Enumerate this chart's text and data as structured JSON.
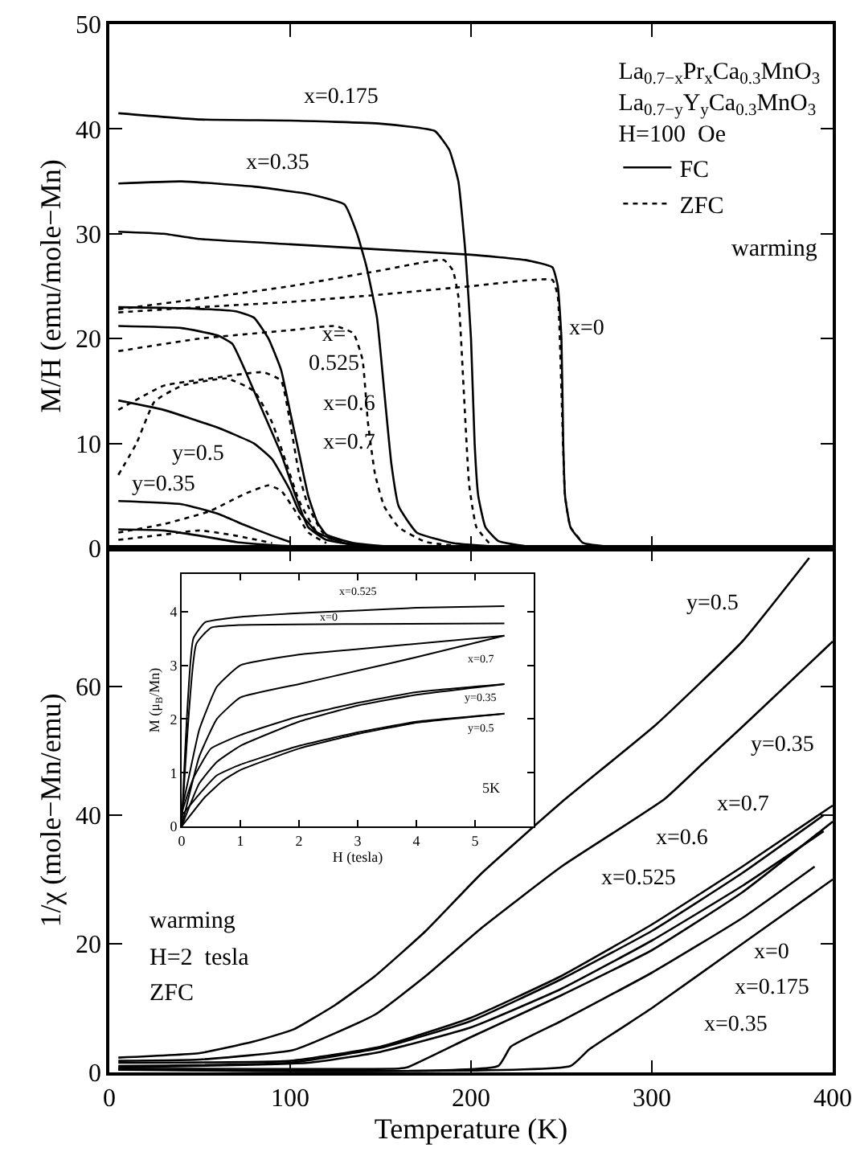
{
  "chart_data": [
    {
      "type": "line",
      "ylabel": "M/H (emu/mole−Mn)",
      "xlim": [
        0,
        400
      ],
      "ylim": [
        0,
        50
      ],
      "xticks": [
        0,
        100,
        200,
        300,
        400
      ],
      "yticks": [
        0,
        10,
        20,
        30,
        40,
        50
      ],
      "tick_labels": "y",
      "legend": "top right",
      "legend_title": "La$_{0.7−x}$Pr$_{x}$Ca$_{0.3}$MnO$_{3}$\nLa$_{0.7−y}$Y$_{y}$Ca$_{0.3}$MnO$_{3}$\nH=100  Oe",
      "marker": "none",
      "annotations": [
        "warming",
        "x=0.175",
        "x=0.35",
        "x=0",
        "x=\n0.525",
        "x=0.6",
        "x=0.7",
        "y=0.5",
        "y=0.35"
      ],
      "series": [
        {
          "name": "FC",
          "color": "#000000",
          "line_style": "solid",
          "x": [
            5,
            50,
            100,
            150,
            180,
            188,
            193,
            197,
            200,
            202,
            204,
            208,
            215,
            230,
            260
          ],
          "values": [
            41.5,
            40.9,
            40.8,
            40.5,
            39.8,
            38,
            35,
            28,
            20,
            10,
            5,
            2,
            0.7,
            0.2,
            0.1
          ]
        },
        {
          "color": "#000000",
          "line_style": "solid",
          "x": [
            5,
            40,
            80,
            110,
            130,
            137,
            142,
            148,
            152,
            156,
            160,
            170,
            190,
            220
          ],
          "values": [
            34.8,
            35,
            34.5,
            33.8,
            32.8,
            30,
            27,
            22,
            15,
            8,
            4,
            1.5,
            0.5,
            0.1
          ]
        },
        {
          "color": "#000000",
          "line_style": "solid",
          "x": [
            5,
            30,
            50,
            100,
            150,
            200,
            230,
            245,
            248,
            250,
            251,
            252,
            255,
            262,
            280
          ],
          "values": [
            30.2,
            30,
            29.5,
            29,
            28.5,
            28,
            27.5,
            26.8,
            25,
            20,
            10,
            5,
            2,
            0.5,
            0.1
          ]
        },
        {
          "color": "#000000",
          "line_style": "solid",
          "x": [
            5,
            40,
            70,
            80,
            88,
            95,
            100,
            105,
            110,
            115,
            120,
            135,
            160
          ],
          "values": [
            23,
            22.9,
            22.6,
            22,
            20,
            17,
            13,
            9,
            5,
            2.5,
            1.3,
            0.5,
            0.1
          ]
        },
        {
          "color": "#000000",
          "line_style": "solid",
          "x": [
            5,
            40,
            60,
            68,
            75,
            85,
            95,
            103,
            110,
            120,
            140
          ],
          "values": [
            21.2,
            21,
            20.3,
            19.5,
            17,
            13,
            9,
            5,
            2,
            0.8,
            0.2
          ]
        },
        {
          "color": "#000000",
          "line_style": "solid",
          "x": [
            5,
            30,
            60,
            80,
            90,
            100,
            105,
            115,
            130,
            150
          ],
          "values": [
            14.1,
            13.2,
            11.5,
            10,
            8.5,
            5.5,
            3.5,
            1.5,
            0.5,
            0.1
          ]
        },
        {
          "color": "#000000",
          "line_style": "solid",
          "x": [
            5,
            40,
            60,
            75,
            90,
            100
          ],
          "values": [
            4.5,
            4.2,
            3.3,
            2.2,
            1.2,
            0.6
          ]
        },
        {
          "color": "#000000",
          "line_style": "solid",
          "x": [
            5,
            30,
            50,
            70,
            90,
            100
          ],
          "values": [
            1.8,
            1.7,
            1.2,
            0.6,
            0.3,
            0.2
          ]
        },
        {
          "name": "ZFC",
          "color": "#000000",
          "line_style": "dotted",
          "x": [
            5,
            50,
            100,
            150,
            185,
            190,
            193,
            196,
            199,
            203,
            210
          ],
          "values": [
            22.8,
            23.8,
            25,
            26.5,
            27.5,
            26.5,
            24,
            15,
            6,
            2,
            0.5
          ]
        },
        {
          "color": "#000000",
          "line_style": "dotted",
          "x": [
            5,
            50,
            100,
            150,
            200,
            245,
            248,
            250,
            252,
            255,
            262
          ],
          "values": [
            22.5,
            23,
            23.5,
            24.2,
            25,
            25.6,
            24,
            15,
            5,
            2,
            0.5
          ]
        },
        {
          "color": "#000000",
          "line_style": "dotted",
          "x": [
            5,
            50,
            100,
            125,
            135,
            140,
            143,
            147,
            152,
            160,
            175,
            200
          ],
          "values": [
            18.8,
            20,
            20.8,
            21.2,
            20.5,
            18,
            12,
            7,
            4,
            2,
            0.6,
            0.1
          ]
        },
        {
          "color": "#000000",
          "line_style": "dotted",
          "x": [
            5,
            30,
            60,
            85,
            95,
            100,
            105,
            110,
            118,
            130
          ],
          "values": [
            13.2,
            15.5,
            16.3,
            16.8,
            16,
            12,
            7,
            4,
            1.5,
            0.5
          ]
        },
        {
          "color": "#000000",
          "line_style": "dotted",
          "x": [
            5,
            15,
            25,
            40,
            65,
            80,
            90,
            100,
            105,
            115,
            130
          ],
          "values": [
            7,
            10,
            14,
            15.5,
            16.2,
            15,
            12,
            7,
            4.5,
            1.5,
            0.4
          ]
        },
        {
          "color": "#000000",
          "line_style": "dotted",
          "x": [
            5,
            30,
            55,
            75,
            88,
            95,
            103,
            110,
            120
          ],
          "values": [
            1.5,
            2.3,
            3.5,
            5.2,
            6,
            5.5,
            3.5,
            1.5,
            0.5
          ]
        },
        {
          "color": "#000000",
          "line_style": "dotted",
          "x": [
            5,
            30,
            50,
            70,
            90
          ],
          "values": [
            0.8,
            1.3,
            1.7,
            1.2,
            0.5
          ]
        }
      ]
    },
    {
      "type": "line",
      "xlabel": "Temperature (K)",
      "ylabel": "1/χ (mole−Mn/emu)",
      "xlim": [
        0,
        400
      ],
      "ylim": [
        0,
        81.5
      ],
      "xticks": [
        0,
        100,
        200,
        300,
        400
      ],
      "yticks": [
        0,
        20,
        40,
        60
      ],
      "marker": "none",
      "annotations": [
        "warming",
        "H=2  tesla",
        "ZFC",
        "y=0.5",
        "y=0.35",
        "x=0.7",
        "x=0.6",
        "x=0.525",
        "x=0",
        "x=0.175",
        "x=0.35"
      ],
      "series": [
        {
          "color": "#000000",
          "line_style": "solid",
          "x": [
            5,
            50,
            80,
            102,
            125,
            147,
            175,
            206,
            250,
            302,
            350,
            387
          ],
          "values": [
            2.3,
            3,
            4.8,
            6.7,
            10.5,
            15,
            22,
            31,
            42,
            54,
            67,
            80
          ]
        },
        {
          "color": "#000000",
          "line_style": "solid",
          "x": [
            5,
            50,
            102,
            147,
            175,
            206,
            250,
            307,
            328,
            351,
            400
          ],
          "values": [
            1.8,
            2,
            3.5,
            9,
            15,
            22.5,
            32,
            42.5,
            48,
            54,
            67
          ]
        },
        {
          "color": "#000000",
          "line_style": "solid",
          "x": [
            5,
            100,
            150,
            200,
            250,
            300,
            350,
            400
          ],
          "values": [
            1.5,
            1.8,
            4,
            8.5,
            15,
            23,
            32,
            41.5
          ]
        },
        {
          "color": "#000000",
          "line_style": "solid",
          "x": [
            5,
            100,
            150,
            200,
            250,
            300,
            350,
            395
          ],
          "values": [
            1,
            1.5,
            3.8,
            8,
            14.5,
            22,
            31,
            40
          ]
        },
        {
          "color": "#000000",
          "line_style": "solid",
          "x": [
            5,
            110,
            150,
            200,
            250,
            300,
            350,
            395
          ],
          "values": [
            0.8,
            1.5,
            3.2,
            7,
            13,
            20.5,
            29,
            37.5
          ]
        },
        {
          "color": "#000000",
          "line_style": "solid",
          "x": [
            5,
            160,
            165,
            200,
            250,
            300,
            350,
            400
          ],
          "values": [
            0.6,
            0.6,
            0.8,
            5.5,
            12,
            19,
            28,
            39
          ]
        },
        {
          "color": "#000000",
          "line_style": "solid",
          "x": [
            5,
            215,
            222,
            250,
            300,
            350,
            390
          ],
          "values": [
            0.5,
            1,
            4,
            8,
            15.5,
            24,
            32
          ]
        },
        {
          "color": "#000000",
          "line_style": "solid",
          "x": [
            5,
            255,
            265,
            300,
            350,
            400
          ],
          "values": [
            0.4,
            1,
            3.5,
            10,
            20,
            30
          ]
        }
      ]
    },
    {
      "type": "line",
      "xlabel": "H (tesla)",
      "ylabel": "M (μ$_{B}$/Mn)",
      "xlim": [
        0,
        6
      ],
      "ylim": [
        0,
        4.7
      ],
      "xticks": [
        0,
        1,
        2,
        3,
        4,
        5
      ],
      "yticks": [
        0,
        1,
        2,
        3,
        4
      ],
      "marker": "none",
      "annotations": [
        "5K",
        "x=0.525",
        "x=0",
        "x=0.7",
        "y=0.35",
        "y=0.5"
      ],
      "series": [
        {
          "color": "#000000",
          "line_style": "solid",
          "x": [
            0,
            0.2,
            0.4,
            1,
            2,
            3,
            4,
            5.5
          ],
          "values": [
            0,
            3.5,
            3.8,
            3.9,
            3.97,
            4.02,
            4.07,
            4.1
          ]
        },
        {
          "color": "#000000",
          "line_style": "solid",
          "x": [
            0,
            0.25,
            0.5,
            1,
            3,
            5.5
          ],
          "values": [
            0,
            3.4,
            3.7,
            3.75,
            3.77,
            3.78
          ]
        },
        {
          "color": "#000000",
          "line_style": "solid",
          "x": [
            5.5,
            3,
            2,
            1,
            0.6,
            0.3,
            0.1,
            0
          ],
          "values": [
            3.55,
            3.3,
            3.2,
            3,
            2.6,
            1.8,
            0.8,
            0.3
          ]
        },
        {
          "color": "#000000",
          "line_style": "solid",
          "x": [
            0,
            0.3,
            0.6,
            1,
            2,
            3,
            4,
            5.5
          ],
          "values": [
            0,
            1.3,
            2,
            2.4,
            2.65,
            2.9,
            3.15,
            3.55
          ]
        },
        {
          "color": "#000000",
          "line_style": "solid",
          "x": [
            5.5,
            4,
            3,
            2,
            1,
            0.5,
            0.2,
            0
          ],
          "values": [
            2.65,
            2.5,
            2.3,
            2.05,
            1.7,
            1.45,
            0.9,
            0.25
          ]
        },
        {
          "color": "#000000",
          "line_style": "solid",
          "x": [
            0,
            0.3,
            0.6,
            1,
            2,
            3,
            4,
            5.5
          ],
          "values": [
            0,
            0.8,
            1.2,
            1.5,
            1.95,
            2.25,
            2.45,
            2.65
          ]
        },
        {
          "color": "#000000",
          "line_style": "solid",
          "x": [
            5.5,
            4,
            3,
            2,
            1,
            0.6,
            0.3,
            0
          ],
          "values": [
            2.1,
            1.95,
            1.75,
            1.5,
            1.15,
            0.95,
            0.6,
            0.2
          ]
        },
        {
          "color": "#000000",
          "line_style": "solid",
          "x": [
            0,
            0.4,
            0.7,
            1,
            2,
            3,
            4,
            5.5
          ],
          "values": [
            0,
            0.55,
            0.85,
            1.05,
            1.45,
            1.72,
            1.93,
            2.1
          ]
        }
      ]
    }
  ]
}
